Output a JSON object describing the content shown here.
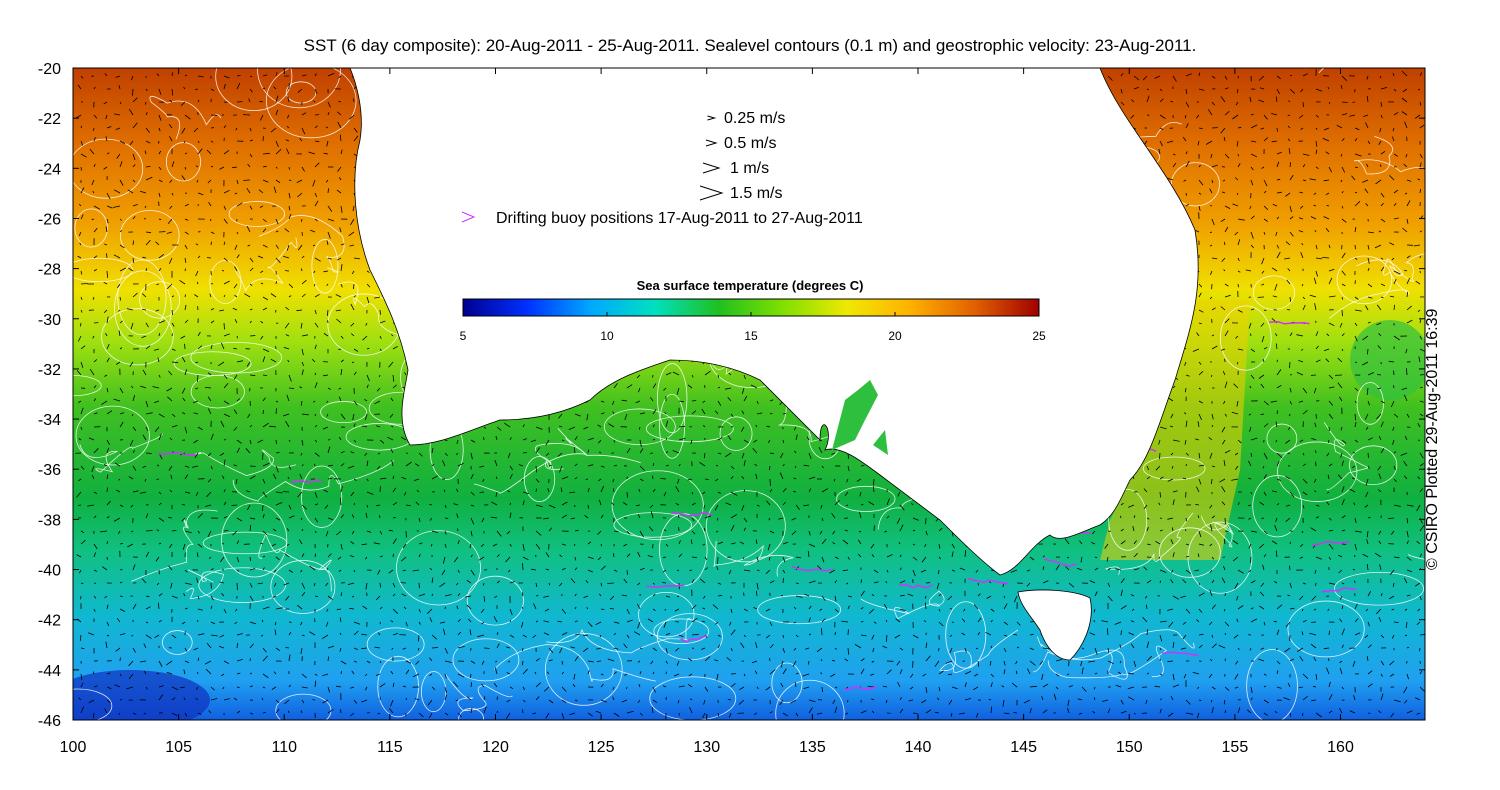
{
  "title": "SST (6 day composite): 20-Aug-2011 - 25-Aug-2011. Sealevel contours (0.1 m) and geostrophic velocity: 23-Aug-2011.",
  "credit": "© CSIRO Plotted 29-Aug-2011 16:39",
  "map": {
    "lon_range": [
      100,
      164
    ],
    "lat_range": [
      -46,
      -20
    ],
    "lon_ticks": [
      "100",
      "105",
      "110",
      "115",
      "120",
      "125",
      "130",
      "135",
      "140",
      "145",
      "150",
      "155",
      "160"
    ],
    "lat_ticks": [
      "-20",
      "-22",
      "-24",
      "-26",
      "-28",
      "-30",
      "-32",
      "-34",
      "-36",
      "-38",
      "-40",
      "-42",
      "-44",
      "-46"
    ]
  },
  "legend": {
    "vectors": [
      {
        "label": "0.25 m/s",
        "scale": 0.25
      },
      {
        "label": "0.5 m/s",
        "scale": 0.5
      },
      {
        "label": "1 m/s",
        "scale": 1
      },
      {
        "label": "1.5 m/s",
        "scale": 1.5
      }
    ],
    "buoy_label": "Drifting buoy positions 17-Aug-2011 to 27-Aug-2011",
    "buoy_color": "#cc33ff"
  },
  "colorbar": {
    "title": "Sea surface temperature (degrees C)",
    "ticks": [
      "5",
      "10",
      "15",
      "20",
      "25"
    ],
    "range": [
      5,
      25
    ],
    "colors": [
      "#00008f",
      "#0030ff",
      "#00a8ff",
      "#00e0c0",
      "#20c020",
      "#80e000",
      "#f0e800",
      "#ffb000",
      "#e06000",
      "#a00000"
    ]
  },
  "colors": {
    "land": "#ffffff",
    "contour": "#ffffff",
    "arrow": "#000000"
  }
}
